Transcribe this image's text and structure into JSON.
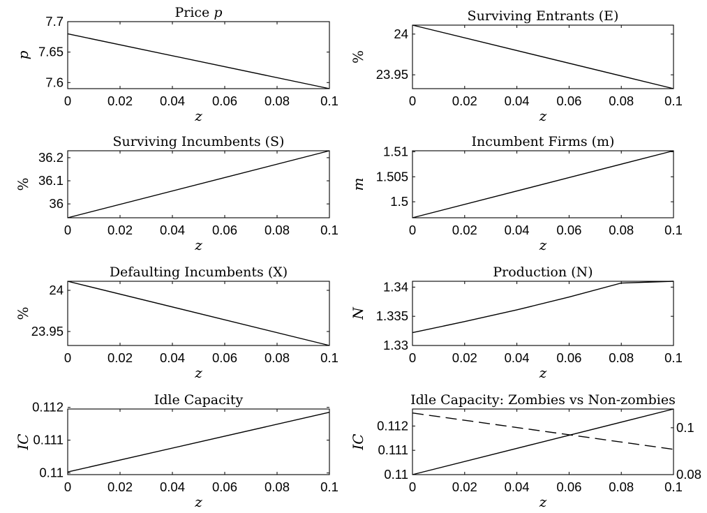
{
  "chart_data": [
    {
      "type": "line",
      "title_main": "Price ",
      "title_math": "p",
      "xlabel": "z",
      "ylabel": "p",
      "ylabel_italic": true,
      "xlim": [
        0,
        0.1
      ],
      "ylim": [
        7.59,
        7.7
      ],
      "xticks": [
        "0",
        "0.02",
        "0.04",
        "0.06",
        "0.08",
        "0.1"
      ],
      "yticks": [
        "7.6",
        "7.65",
        "7.7"
      ],
      "ytick_values": [
        7.6,
        7.65,
        7.7
      ],
      "series": [
        {
          "style": "solid",
          "x": [
            0,
            0.1
          ],
          "y": [
            7.68,
            7.59
          ]
        }
      ]
    },
    {
      "type": "line",
      "title_main": "Surviving Entrants (E)",
      "xlabel": "z",
      "ylabel": "%",
      "ylabel_italic": false,
      "xlim": [
        0,
        0.1
      ],
      "ylim": [
        23.933,
        24.011
      ],
      "xticks": [
        "0",
        "0.02",
        "0.04",
        "0.06",
        "0.08",
        "0.1"
      ],
      "yticks": [
        "23.95",
        "24"
      ],
      "ytick_values": [
        23.95,
        24
      ],
      "series": [
        {
          "style": "solid",
          "x": [
            0,
            0.1
          ],
          "y": [
            24.011,
            23.933
          ]
        }
      ]
    },
    {
      "type": "line",
      "title_main": "Surviving Incumbents (S)",
      "xlabel": "z",
      "ylabel": "%",
      "ylabel_italic": false,
      "xlim": [
        0,
        0.1
      ],
      "ylim": [
        35.94,
        36.23
      ],
      "xticks": [
        "0",
        "0.02",
        "0.04",
        "0.06",
        "0.08",
        "0.1"
      ],
      "yticks": [
        "36",
        "36.1",
        "36.2"
      ],
      "ytick_values": [
        36,
        36.1,
        36.2
      ],
      "series": [
        {
          "style": "solid",
          "x": [
            0,
            0.1
          ],
          "y": [
            35.94,
            36.23
          ]
        }
      ]
    },
    {
      "type": "line",
      "title_main": "Incumbent Firms (m)",
      "xlabel": "z",
      "ylabel": "m",
      "ylabel_italic": true,
      "xlim": [
        0,
        0.1
      ],
      "ylim": [
        1.4968,
        1.5102
      ],
      "xticks": [
        "0",
        "0.02",
        "0.04",
        "0.06",
        "0.08",
        "0.1"
      ],
      "yticks": [
        "1.5",
        "1.505",
        "1.51"
      ],
      "ytick_values": [
        1.5,
        1.505,
        1.51
      ],
      "series": [
        {
          "style": "solid",
          "x": [
            0,
            0.1
          ],
          "y": [
            1.4968,
            1.5102
          ]
        }
      ]
    },
    {
      "type": "line",
      "title_main": "Defaulting Incumbents (X)",
      "xlabel": "z",
      "ylabel": "%",
      "ylabel_italic": false,
      "xlim": [
        0,
        0.1
      ],
      "ylim": [
        23.933,
        24.011
      ],
      "xticks": [
        "0",
        "0.02",
        "0.04",
        "0.06",
        "0.08",
        "0.1"
      ],
      "yticks": [
        "23.95",
        "24"
      ],
      "ytick_values": [
        23.95,
        24
      ],
      "series": [
        {
          "style": "solid",
          "x": [
            0,
            0.1
          ],
          "y": [
            24.011,
            23.933
          ]
        }
      ]
    },
    {
      "type": "line",
      "title_main": "Production (N)",
      "xlabel": "z",
      "ylabel": "N",
      "ylabel_italic": true,
      "xlim": [
        0,
        0.1
      ],
      "ylim": [
        1.33,
        1.341
      ],
      "xticks": [
        "0",
        "0.02",
        "0.04",
        "0.06",
        "0.08",
        "0.1"
      ],
      "yticks": [
        "1.33",
        "1.335",
        "1.34"
      ],
      "ytick_values": [
        1.33,
        1.335,
        1.34
      ],
      "series": [
        {
          "style": "solid",
          "x": [
            0,
            0.02,
            0.04,
            0.06,
            0.08,
            0.1
          ],
          "y": [
            1.3322,
            1.3341,
            1.3361,
            1.3383,
            1.3407,
            1.341
          ]
        }
      ]
    },
    {
      "type": "line",
      "title_main": "Idle Capacity",
      "xlabel": "z",
      "ylabel": "IC",
      "ylabel_italic": true,
      "xlim": [
        0,
        0.1
      ],
      "ylim": [
        0.10995,
        0.11195
      ],
      "xticks": [
        "0",
        "0.02",
        "0.04",
        "0.06",
        "0.08",
        "0.1"
      ],
      "yticks": [
        "0.11",
        "0.111",
        "0.112"
      ],
      "ytick_values": [
        0.11,
        0.111,
        0.112
      ],
      "series": [
        {
          "style": "solid",
          "x": [
            0,
            0.1
          ],
          "y": [
            0.11003,
            0.11185
          ]
        }
      ]
    },
    {
      "type": "line",
      "title_main": "Idle Capacity: Zombies vs Non-zombies",
      "xlabel": "z",
      "ylabel": "IC",
      "ylabel_italic": true,
      "xlim": [
        0,
        0.1
      ],
      "ylim": [
        0.11,
        0.1127
      ],
      "xticks": [
        "0",
        "0.02",
        "0.04",
        "0.06",
        "0.08",
        "0.1"
      ],
      "yticks": [
        "0.11",
        "0.111",
        "0.112"
      ],
      "ytick_values": [
        0.11,
        0.111,
        0.112
      ],
      "y2lim": [
        0.08,
        0.108
      ],
      "y2ticks": [
        "0.08",
        "0.1"
      ],
      "y2tick_values": [
        0.08,
        0.1
      ],
      "series": [
        {
          "style": "solid",
          "axis": "left",
          "x": [
            0,
            0.1
          ],
          "y": [
            0.11,
            0.1127
          ]
        },
        {
          "style": "dashed",
          "axis": "right",
          "x": [
            0,
            0.1
          ],
          "y": [
            0.1063,
            0.0908
          ]
        }
      ]
    }
  ]
}
